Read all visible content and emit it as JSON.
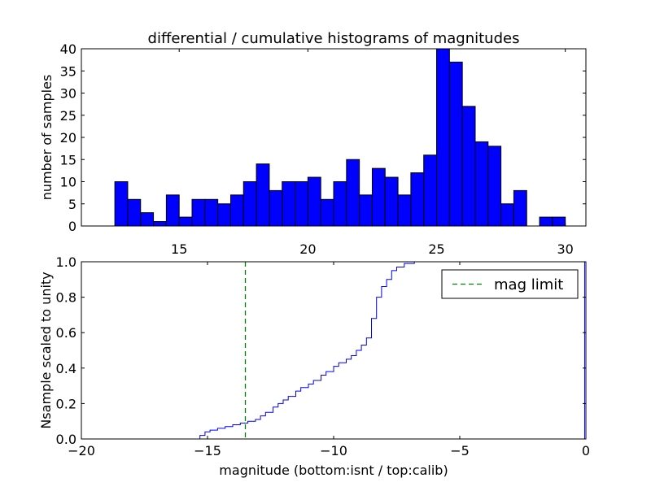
{
  "chart_data": [
    {
      "type": "bar",
      "title": "differential / cumulative histograms of magnitudes",
      "xlabel": "",
      "ylabel": "number of samples",
      "xlim": [
        11.2,
        30.8
      ],
      "ylim": [
        0,
        40
      ],
      "xticks": [
        15,
        20,
        25,
        30
      ],
      "yticks": [
        0,
        5,
        10,
        15,
        20,
        25,
        30,
        35,
        40
      ],
      "bin_width": 0.5,
      "bins": [
        {
          "x": 12.5,
          "count": 10
        },
        {
          "x": 13.0,
          "count": 6
        },
        {
          "x": 13.5,
          "count": 3
        },
        {
          "x": 14.0,
          "count": 1
        },
        {
          "x": 14.5,
          "count": 7
        },
        {
          "x": 15.0,
          "count": 2
        },
        {
          "x": 15.5,
          "count": 6
        },
        {
          "x": 16.0,
          "count": 6
        },
        {
          "x": 16.5,
          "count": 5
        },
        {
          "x": 17.0,
          "count": 7
        },
        {
          "x": 17.5,
          "count": 10
        },
        {
          "x": 18.0,
          "count": 14
        },
        {
          "x": 18.5,
          "count": 8
        },
        {
          "x": 19.0,
          "count": 10
        },
        {
          "x": 19.5,
          "count": 10
        },
        {
          "x": 20.0,
          "count": 11
        },
        {
          "x": 20.5,
          "count": 6
        },
        {
          "x": 21.0,
          "count": 10
        },
        {
          "x": 21.5,
          "count": 15
        },
        {
          "x": 22.0,
          "count": 7
        },
        {
          "x": 22.5,
          "count": 13
        },
        {
          "x": 23.0,
          "count": 11
        },
        {
          "x": 23.5,
          "count": 7
        },
        {
          "x": 24.0,
          "count": 12
        },
        {
          "x": 24.5,
          "count": 16
        },
        {
          "x": 25.0,
          "count": 40
        },
        {
          "x": 25.5,
          "count": 37
        },
        {
          "x": 26.0,
          "count": 27
        },
        {
          "x": 26.5,
          "count": 19
        },
        {
          "x": 27.0,
          "count": 18
        },
        {
          "x": 27.5,
          "count": 5
        },
        {
          "x": 28.0,
          "count": 8
        },
        {
          "x": 29.0,
          "count": 2
        },
        {
          "x": 29.5,
          "count": 2
        }
      ],
      "bar_color": "#0000ff"
    },
    {
      "type": "line",
      "title": "",
      "xlabel": "magnitude (bottom:isnt / top:calib)",
      "ylabel": "Nsample scaled to unity",
      "xlim": [
        -20,
        0
      ],
      "ylim": [
        0,
        1
      ],
      "xticks": [
        -20,
        -15,
        -10,
        -5,
        0
      ],
      "ytick_labels": [
        "0.0",
        "0.2",
        "0.4",
        "0.6",
        "0.8",
        "1.0"
      ],
      "step_x": [
        -20.0,
        -15.3,
        -15.1,
        -14.9,
        -14.6,
        -14.3,
        -14.0,
        -13.7,
        -13.4,
        -13.1,
        -12.9,
        -12.7,
        -12.4,
        -12.2,
        -12.0,
        -11.8,
        -11.5,
        -11.3,
        -11.0,
        -10.8,
        -10.5,
        -10.3,
        -10.0,
        -9.8,
        -9.5,
        -9.3,
        -9.1,
        -8.9,
        -8.7,
        -8.5,
        -8.3,
        -8.1,
        -7.9,
        -7.7,
        -7.5,
        -7.2,
        -6.8,
        -0.05,
        -0.05
      ],
      "step_y": [
        0.0,
        0.02,
        0.04,
        0.05,
        0.06,
        0.07,
        0.08,
        0.09,
        0.1,
        0.11,
        0.13,
        0.15,
        0.18,
        0.2,
        0.22,
        0.24,
        0.27,
        0.29,
        0.31,
        0.33,
        0.36,
        0.38,
        0.41,
        0.43,
        0.45,
        0.47,
        0.5,
        0.53,
        0.57,
        0.68,
        0.8,
        0.86,
        0.9,
        0.95,
        0.97,
        0.99,
        1.0,
        1.0,
        0.0
      ],
      "line_color": "#0000ff",
      "mag_limit": -13.5,
      "mag_limit_color": "#008000",
      "legend": {
        "label": "mag limit",
        "position": "top-right"
      }
    }
  ]
}
